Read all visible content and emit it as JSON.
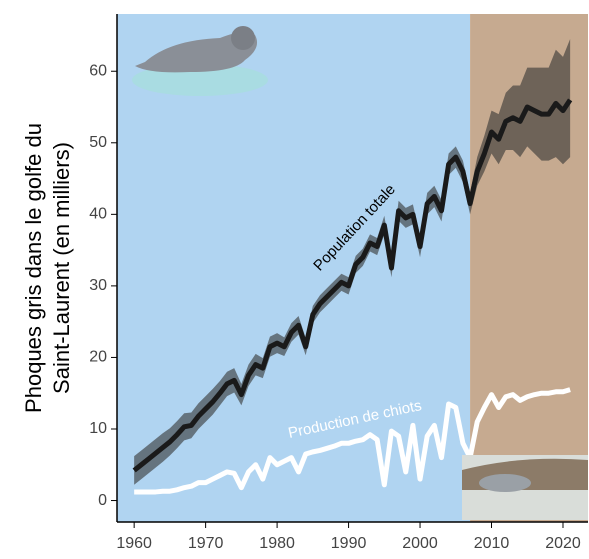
{
  "chart_data": {
    "type": "line",
    "ylabel": [
      "Phoques gris dans le golfe du",
      "Saint-Laurent (en milliers)"
    ],
    "x": [
      1960,
      1961,
      1962,
      1963,
      1964,
      1965,
      1966,
      1967,
      1968,
      1969,
      1970,
      1971,
      1972,
      1973,
      1974,
      1975,
      1976,
      1977,
      1978,
      1979,
      1980,
      1981,
      1982,
      1983,
      1984,
      1985,
      1986,
      1987,
      1988,
      1989,
      1990,
      1991,
      1992,
      1993,
      1994,
      1995,
      1996,
      1997,
      1998,
      1999,
      2000,
      2001,
      2002,
      2003,
      2004,
      2005,
      2006,
      2007,
      2008,
      2009,
      2010,
      2011,
      2012,
      2013,
      2014,
      2015,
      2016,
      2017,
      2018,
      2019,
      2020,
      2021
    ],
    "series": [
      {
        "name": "Population totale",
        "color": "#1a1a1a",
        "band_color": "#333333",
        "values": [
          4.2,
          5,
          5.8,
          6.6,
          7.4,
          8.2,
          9.2,
          10.3,
          10.5,
          11.8,
          12.8,
          13.8,
          15,
          16.3,
          16.8,
          14.8,
          17.5,
          19,
          18.5,
          21.5,
          22,
          21.5,
          23.5,
          24.5,
          21.5,
          26,
          27.5,
          28.5,
          29.5,
          30.5,
          30,
          33,
          34,
          36,
          35.5,
          38.5,
          32.5,
          40.5,
          39.5,
          40,
          35.5,
          41.5,
          42.5,
          40.5,
          47,
          48,
          46,
          41.5,
          46,
          48.5,
          51.5,
          50.5,
          53,
          53.5,
          53,
          55,
          54.5,
          54,
          54,
          55.5,
          54.5,
          56
        ],
        "lower": [
          2.2,
          3,
          3.8,
          4.6,
          5.4,
          6.3,
          7.3,
          8.4,
          8.7,
          10,
          11,
          12,
          13.3,
          14.6,
          15.1,
          13.3,
          16,
          17.5,
          17.1,
          20.1,
          20.6,
          20.2,
          22.2,
          23.2,
          20.3,
          24.8,
          26.3,
          27.3,
          28.3,
          29.3,
          28.8,
          31.8,
          32.8,
          34.8,
          34.3,
          37.2,
          31.2,
          39.1,
          38.1,
          38.6,
          34,
          40,
          41,
          39,
          45.5,
          46.5,
          44.5,
          40,
          44,
          46,
          48.5,
          47,
          49,
          49,
          48,
          49.5,
          48.5,
          47.5,
          47.5,
          48,
          47,
          48
        ],
        "upper": [
          6.2,
          7,
          7.8,
          8.6,
          9.4,
          10.1,
          11.1,
          12.2,
          12.3,
          13.6,
          14.6,
          15.6,
          16.7,
          18,
          18.5,
          16.3,
          19,
          20.5,
          19.9,
          22.9,
          23.4,
          22.8,
          24.8,
          25.8,
          22.7,
          27.2,
          28.7,
          29.7,
          30.7,
          31.7,
          31.2,
          34.2,
          35.2,
          37.2,
          36.7,
          39.8,
          33.8,
          41.9,
          40.9,
          41.4,
          37,
          43,
          44,
          42,
          48.5,
          49.5,
          47.5,
          43,
          48,
          51,
          54.5,
          54,
          57,
          58,
          58,
          60.5,
          60.5,
          60.5,
          60.5,
          63,
          62,
          64.5
        ]
      },
      {
        "name": "Production de chiots",
        "color": "#ffffff",
        "values": [
          1.2,
          1.2,
          1.2,
          1.2,
          1.3,
          1.3,
          1.5,
          1.8,
          2,
          2.5,
          2.5,
          3,
          3.5,
          4,
          3.8,
          1.8,
          4,
          5,
          3,
          6,
          5,
          5.5,
          6,
          4,
          6.5,
          6.8,
          7,
          7.3,
          7.6,
          8,
          8,
          8.3,
          8.5,
          9.2,
          8.5,
          2.2,
          9.7,
          9,
          4,
          10.5,
          3,
          9,
          10.5,
          6,
          13.5,
          13,
          8,
          6,
          11,
          13,
          14.8,
          13,
          14.5,
          14.8,
          14,
          14.5,
          14.8,
          15,
          15,
          15.2,
          15.2,
          15.5
        ]
      }
    ],
    "regions": [
      {
        "to": 2007,
        "color": "#b0d4f1"
      },
      {
        "from": 2007,
        "color": "#c6aa90"
      }
    ],
    "xlim": [
      1957.6,
      2023.5
    ],
    "ylim": [
      -3,
      68
    ],
    "xticks": [
      1960,
      1970,
      1980,
      1990,
      2000,
      2010,
      2020
    ],
    "yticks": [
      0,
      10,
      20,
      30,
      40,
      50,
      60
    ],
    "grid": false
  }
}
